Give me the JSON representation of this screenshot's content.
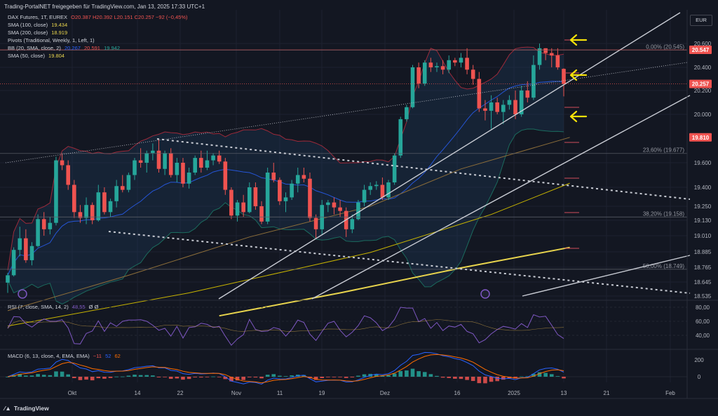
{
  "header": {
    "title": "Trading-PortalNET freigegeben für TradingView.com, Jan 13, 2025 17:33 UTC+1"
  },
  "legend": {
    "main": "DAX Futures, 1T, EUREX",
    "ohlc": "O20.387  H20.392  L20.151  C20.257  −92 (−0,45%)",
    "sma100_label": "SMA (100, close)",
    "sma100_value": "19.434",
    "sma200_label": "SMA (200, close)",
    "sma200_value": "18.919",
    "pivots_label": "Pivots (Traditional, Weekly, 1, Left, 1)",
    "bb_label": "BB (20, SMA, close, 2)",
    "bb_basis": "20.267",
    "bb_upper": "20.591",
    "bb_lower": "19.942",
    "sma50_label": "SMA (50, close)",
    "sma50_value": "19.804",
    "rsi_label": "RSI (7, close, SMA, 14, 2)",
    "rsi_value": "48,55",
    "rsi_extra": "Ø  Ø",
    "macd_label": "MACD (6, 13, close, 4, EMA, EMA)",
    "macd_hist": "−11",
    "macd_line": "52",
    "macd_signal": "62"
  },
  "currency_button": "EUR",
  "branding": "TradingView",
  "colors": {
    "bg": "#131722",
    "up": "#26a69a",
    "down": "#ef5350",
    "sma100": "#c8b400",
    "sma200": "#e8d44d",
    "sma50": "#8d6e3a",
    "bb_basis": "#2962ff",
    "bb_band": "#9c2a3a",
    "rsi": "#7e57c2",
    "macd": "#2962ff",
    "signal": "#ff6d00",
    "annotation_arrow": "#f5e10a",
    "trendline": "#c9ccd4"
  },
  "chart_data": {
    "type": "candlestick",
    "price_axis_ticks": [
      "20.600",
      "20.400",
      "20.200",
      "20.000",
      "19.600",
      "19.400",
      "19.250",
      "19.130",
      "19.010",
      "18.885",
      "18.765",
      "18.645",
      "18.535"
    ],
    "time_axis_ticks": [
      "Okt",
      "14",
      "22",
      "Nov",
      "11",
      "19",
      "Dez",
      "16",
      "2025",
      "13",
      "21",
      "Feb"
    ],
    "price_labels": [
      {
        "text": "20.547",
        "color": "#ef5350"
      },
      {
        "text": "20.257",
        "color": "#ef5350"
      },
      {
        "text": "19.810",
        "color": "#ef5350"
      }
    ],
    "fib_levels": [
      {
        "label": "0,00% (20.545)",
        "value": 20545
      },
      {
        "label": "23,60% (19.677)",
        "value": 19677
      },
      {
        "label": "38,20% (19.158)",
        "value": 19158
      },
      {
        "label": "50,00% (18.749)",
        "value": 18749
      }
    ],
    "candles": [
      {
        "o": 18640,
        "h": 18720,
        "l": 18560,
        "c": 18700
      },
      {
        "o": 18700,
        "h": 18920,
        "l": 18690,
        "c": 18900
      },
      {
        "o": 18900,
        "h": 19080,
        "l": 18850,
        "c": 18990
      },
      {
        "o": 18990,
        "h": 19060,
        "l": 18800,
        "c": 18820
      },
      {
        "o": 18820,
        "h": 18960,
        "l": 18780,
        "c": 18930
      },
      {
        "o": 18930,
        "h": 19180,
        "l": 18920,
        "c": 19140
      },
      {
        "o": 19140,
        "h": 19200,
        "l": 19010,
        "c": 19060
      },
      {
        "o": 19060,
        "h": 19160,
        "l": 19020,
        "c": 19110
      },
      {
        "o": 19110,
        "h": 19650,
        "l": 19090,
        "c": 19620
      },
      {
        "o": 19620,
        "h": 19680,
        "l": 19540,
        "c": 19580
      },
      {
        "o": 19580,
        "h": 19620,
        "l": 19380,
        "c": 19420
      },
      {
        "o": 19420,
        "h": 19460,
        "l": 19150,
        "c": 19200
      },
      {
        "o": 19200,
        "h": 19260,
        "l": 19110,
        "c": 19150
      },
      {
        "o": 19150,
        "h": 19320,
        "l": 19100,
        "c": 19260
      },
      {
        "o": 19260,
        "h": 19280,
        "l": 19100,
        "c": 19130
      },
      {
        "o": 19130,
        "h": 19420,
        "l": 19120,
        "c": 19360
      },
      {
        "o": 19360,
        "h": 19400,
        "l": 19180,
        "c": 19200
      },
      {
        "o": 19200,
        "h": 19310,
        "l": 19160,
        "c": 19290
      },
      {
        "o": 19290,
        "h": 19460,
        "l": 19240,
        "c": 19410
      },
      {
        "o": 19410,
        "h": 19500,
        "l": 19360,
        "c": 19380
      },
      {
        "o": 19380,
        "h": 19520,
        "l": 19360,
        "c": 19500
      },
      {
        "o": 19500,
        "h": 19640,
        "l": 19460,
        "c": 19620
      },
      {
        "o": 19620,
        "h": 19720,
        "l": 19560,
        "c": 19600
      },
      {
        "o": 19600,
        "h": 19700,
        "l": 19520,
        "c": 19680
      },
      {
        "o": 19680,
        "h": 19760,
        "l": 19620,
        "c": 19700
      },
      {
        "o": 19700,
        "h": 19800,
        "l": 19520,
        "c": 19550
      },
      {
        "o": 19550,
        "h": 19700,
        "l": 19500,
        "c": 19680
      },
      {
        "o": 19680,
        "h": 19720,
        "l": 19480,
        "c": 19500
      },
      {
        "o": 19500,
        "h": 19640,
        "l": 19440,
        "c": 19600
      },
      {
        "o": 19600,
        "h": 19640,
        "l": 19400,
        "c": 19430
      },
      {
        "o": 19430,
        "h": 19560,
        "l": 19390,
        "c": 19520
      },
      {
        "o": 19520,
        "h": 19660,
        "l": 19500,
        "c": 19640
      },
      {
        "o": 19640,
        "h": 19700,
        "l": 19520,
        "c": 19560
      },
      {
        "o": 19560,
        "h": 19700,
        "l": 19540,
        "c": 19620
      },
      {
        "o": 19620,
        "h": 19680,
        "l": 19580,
        "c": 19660
      },
      {
        "o": 19660,
        "h": 19700,
        "l": 19590,
        "c": 19610
      },
      {
        "o": 19610,
        "h": 19640,
        "l": 19340,
        "c": 19380
      },
      {
        "o": 19380,
        "h": 19400,
        "l": 19140,
        "c": 19170
      },
      {
        "o": 19170,
        "h": 19300,
        "l": 19120,
        "c": 19280
      },
      {
        "o": 19280,
        "h": 19340,
        "l": 19160,
        "c": 19200
      },
      {
        "o": 19200,
        "h": 19440,
        "l": 19190,
        "c": 19400
      },
      {
        "o": 19400,
        "h": 19440,
        "l": 19220,
        "c": 19250
      },
      {
        "o": 19250,
        "h": 19290,
        "l": 19100,
        "c": 19120
      },
      {
        "o": 19120,
        "h": 19560,
        "l": 19100,
        "c": 19520
      },
      {
        "o": 19520,
        "h": 19600,
        "l": 19440,
        "c": 19460
      },
      {
        "o": 19460,
        "h": 19480,
        "l": 19260,
        "c": 19290
      },
      {
        "o": 19290,
        "h": 19360,
        "l": 19200,
        "c": 19320
      },
      {
        "o": 19320,
        "h": 19460,
        "l": 19300,
        "c": 19430
      },
      {
        "o": 19430,
        "h": 19560,
        "l": 19360,
        "c": 19500
      },
      {
        "o": 19500,
        "h": 19560,
        "l": 19440,
        "c": 19470
      },
      {
        "o": 19470,
        "h": 19520,
        "l": 19120,
        "c": 19150
      },
      {
        "o": 19150,
        "h": 19180,
        "l": 18990,
        "c": 19060
      },
      {
        "o": 19060,
        "h": 19300,
        "l": 19020,
        "c": 19260
      },
      {
        "o": 19260,
        "h": 19300,
        "l": 19200,
        "c": 19280
      },
      {
        "o": 19280,
        "h": 19320,
        "l": 19180,
        "c": 19240
      },
      {
        "o": 19240,
        "h": 19300,
        "l": 19160,
        "c": 19210
      },
      {
        "o": 19210,
        "h": 19240,
        "l": 19000,
        "c": 19060
      },
      {
        "o": 19060,
        "h": 19180,
        "l": 19030,
        "c": 19140
      },
      {
        "o": 19140,
        "h": 19300,
        "l": 19130,
        "c": 19280
      },
      {
        "o": 19280,
        "h": 19420,
        "l": 19250,
        "c": 19380
      },
      {
        "o": 19380,
        "h": 19440,
        "l": 19340,
        "c": 19410
      },
      {
        "o": 19410,
        "h": 19450,
        "l": 19380,
        "c": 19420
      },
      {
        "o": 19420,
        "h": 19480,
        "l": 19300,
        "c": 19320
      },
      {
        "o": 19320,
        "h": 19460,
        "l": 19300,
        "c": 19440
      },
      {
        "o": 19440,
        "h": 19680,
        "l": 19420,
        "c": 19660
      },
      {
        "o": 19660,
        "h": 19980,
        "l": 19640,
        "c": 19960
      },
      {
        "o": 19960,
        "h": 20080,
        "l": 19940,
        "c": 20060
      },
      {
        "o": 20060,
        "h": 20420,
        "l": 20050,
        "c": 20400
      },
      {
        "o": 20400,
        "h": 20440,
        "l": 20220,
        "c": 20260
      },
      {
        "o": 20260,
        "h": 20460,
        "l": 20240,
        "c": 20440
      },
      {
        "o": 20440,
        "h": 20480,
        "l": 20360,
        "c": 20400
      },
      {
        "o": 20400,
        "h": 20440,
        "l": 20360,
        "c": 20410
      },
      {
        "o": 20410,
        "h": 20460,
        "l": 20340,
        "c": 20380
      },
      {
        "o": 20380,
        "h": 20500,
        "l": 20350,
        "c": 20460
      },
      {
        "o": 20460,
        "h": 20480,
        "l": 20410,
        "c": 20440
      },
      {
        "o": 20440,
        "h": 20520,
        "l": 20400,
        "c": 20480
      },
      {
        "o": 20480,
        "h": 20560,
        "l": 20340,
        "c": 20380
      },
      {
        "o": 20380,
        "h": 20420,
        "l": 20250,
        "c": 20300
      },
      {
        "o": 20300,
        "h": 20360,
        "l": 20020,
        "c": 20050
      },
      {
        "o": 20050,
        "h": 20120,
        "l": 19950,
        "c": 20030
      },
      {
        "o": 20030,
        "h": 20160,
        "l": 19880,
        "c": 20100
      },
      {
        "o": 20100,
        "h": 20140,
        "l": 20000,
        "c": 20020
      },
      {
        "o": 20020,
        "h": 20120,
        "l": 19920,
        "c": 20080
      },
      {
        "o": 20080,
        "h": 20160,
        "l": 20040,
        "c": 20120
      },
      {
        "o": 20120,
        "h": 20200,
        "l": 19960,
        "c": 20000
      },
      {
        "o": 20000,
        "h": 20240,
        "l": 19980,
        "c": 20200
      },
      {
        "o": 20200,
        "h": 20280,
        "l": 20100,
        "c": 20140
      },
      {
        "o": 20140,
        "h": 20500,
        "l": 20120,
        "c": 20420
      },
      {
        "o": 20420,
        "h": 20600,
        "l": 20380,
        "c": 20560
      },
      {
        "o": 20560,
        "h": 20640,
        "l": 20460,
        "c": 20520
      },
      {
        "o": 20520,
        "h": 20560,
        "l": 20400,
        "c": 20500
      },
      {
        "o": 20500,
        "h": 20560,
        "l": 20380,
        "c": 20400
      },
      {
        "o": 20387,
        "h": 20392,
        "l": 20151,
        "c": 20257
      }
    ]
  }
}
